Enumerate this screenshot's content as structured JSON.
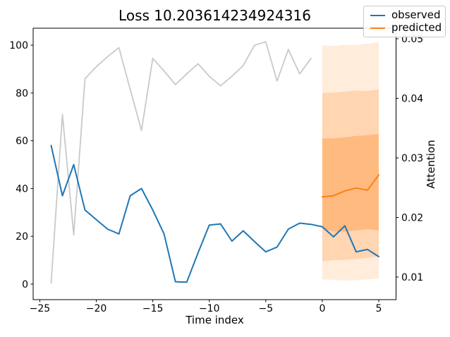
{
  "title": "Loss 10.203614234924316",
  "legend": {
    "items": [
      {
        "label": "observed",
        "color": "#1f77b4"
      },
      {
        "label": "predicted",
        "color": "#ff7f0e"
      }
    ]
  },
  "chart_data": {
    "type": "line",
    "title": "Loss 10.203614234924316",
    "xlabel": "Time index",
    "ylabel_left": "",
    "ylabel_right": "Attention",
    "grid": false,
    "legend_position": "top-right",
    "xlim": [
      -25.59,
      6.53
    ],
    "ylim_left": [
      -6.5,
      107.1
    ],
    "ylim_right": [
      0.00621,
      0.05177
    ],
    "x_ticks": {
      "values": [
        -25,
        -20,
        -15,
        -10,
        -5,
        0,
        5
      ],
      "labels": [
        "−25",
        "−20",
        "−15",
        "−10",
        "−5",
        "0",
        "5"
      ]
    },
    "y_left_ticks": {
      "values": [
        0,
        20,
        40,
        60,
        80,
        100
      ],
      "labels": [
        "0",
        "20",
        "40",
        "60",
        "80",
        "100"
      ]
    },
    "y_right_ticks": {
      "values": [
        0.01,
        0.02,
        0.03,
        0.04,
        0.05
      ],
      "labels": [
        "0.01",
        "0.02",
        "0.03",
        "0.04",
        "0.05"
      ]
    },
    "series": [
      {
        "name": "attention",
        "axis": "right",
        "color": "#c9c9c9",
        "width": 1.8,
        "x": [
          -24,
          -23,
          -22,
          -21,
          -20,
          -19,
          -18,
          -17,
          -16,
          -15,
          -14,
          -13,
          -12,
          -11,
          -10,
          -9,
          -8,
          -7,
          -6,
          -5,
          -4,
          -3,
          -2,
          -1
        ],
        "y": [
          0.009,
          0.0373,
          0.0171,
          0.0433,
          0.0453,
          0.047,
          0.0485,
          0.0415,
          0.0346,
          0.0467,
          0.0446,
          0.0423,
          0.0441,
          0.0458,
          0.0437,
          0.0421,
          0.0437,
          0.0455,
          0.0489,
          0.0495,
          0.0429,
          0.0482,
          0.0441,
          0.0467
        ]
      },
      {
        "name": "observed",
        "axis": "left",
        "color": "#1f77b4",
        "width": 2,
        "x": [
          -24,
          -23,
          -22,
          -21,
          -20,
          -19,
          -18,
          -17,
          -16,
          -15,
          -14,
          -13,
          -12,
          -11,
          -10,
          -9,
          -8,
          -7,
          -6,
          -5,
          -4,
          -3,
          -2,
          -1,
          0,
          1,
          2,
          3,
          4,
          5
        ],
        "y": [
          58,
          37,
          50,
          31,
          27,
          23,
          21,
          37,
          40,
          31,
          21,
          1,
          0.8,
          13,
          24.7,
          25.2,
          18,
          22.3,
          17.8,
          13.5,
          15.5,
          23,
          25.5,
          25,
          24,
          19.8,
          24.4,
          13.5,
          14.5,
          11.5
        ]
      },
      {
        "name": "predicted",
        "axis": "left",
        "color": "#ff7f0e",
        "width": 2,
        "x": [
          0,
          1,
          2,
          3,
          4,
          5
        ],
        "y": [
          36.5,
          37,
          39,
          40.2,
          39.3,
          45.7
        ]
      }
    ],
    "bands": [
      {
        "name": "confidence-band-outer",
        "fill": "rgba(255,127,14,0.15)",
        "x": [
          0,
          1,
          2,
          3,
          4,
          5
        ],
        "top": [
          100,
          99.6,
          100.2,
          100,
          100.6,
          101.3
        ],
        "bottom": [
          2.0,
          1.8,
          1.5,
          1.6,
          2.0,
          2.4
        ]
      },
      {
        "name": "confidence-band-middle",
        "fill": "rgba(255,127,14,0.2)",
        "x": [
          0,
          1,
          2,
          3,
          4,
          5
        ],
        "top": [
          80,
          80.2,
          80.5,
          81,
          80.8,
          81.5
        ],
        "bottom": [
          9.5,
          10,
          10.2,
          10.5,
          11,
          11.7
        ]
      },
      {
        "name": "confidence-band-inner",
        "fill": "rgba(255,127,14,0.3)",
        "x": [
          0,
          1,
          2,
          3,
          4,
          5
        ],
        "top": [
          61,
          61,
          61.4,
          62,
          62.3,
          62.8
        ],
        "bottom": [
          23,
          22,
          22,
          22.5,
          23,
          22.5
        ]
      }
    ]
  }
}
